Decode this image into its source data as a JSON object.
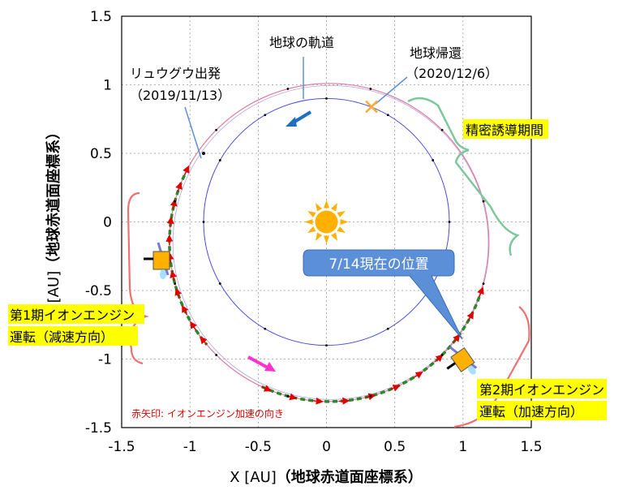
{
  "chart_data": {
    "type": "scatter",
    "xlabel_prefix": "X [AU]",
    "xlabel_suffix": "（地球赤道面座標系）",
    "ylabel_prefix": "Y [AU]",
    "ylabel_suffix": "（地球赤道面座標系）",
    "xlim": [
      -1.5,
      1.5
    ],
    "ylim": [
      -1.5,
      1.5
    ],
    "x_ticks": [
      "-1.5",
      "-1",
      "-0.5",
      "0",
      "0.5",
      "1",
      "1.5"
    ],
    "y_ticks": [
      "1.5",
      "1",
      "0.5",
      "0",
      "-0.5",
      "-1",
      "-1.5"
    ],
    "grid": true,
    "earth_orbit_radius": 0.9,
    "departure_point": [
      -0.9,
      0.5
    ],
    "return_point": [
      0.33,
      0.84
    ],
    "current_point": [
      0.98,
      -0.97
    ],
    "thrust_arcs_deg": [
      [
        155,
        220
      ],
      [
        -20,
        -115
      ]
    ]
  },
  "labels": {
    "earth_orbit": "地球の軌道",
    "departure_line1": "リュウグウ出発",
    "departure_line2": "（2019/11/13）",
    "return_line1": "地球帰還",
    "return_line2": "（2020/12/6）",
    "precision_guidance": "精密誘導期間",
    "current_position": "7/14現在の位置",
    "phase1_line1": "第1期イオンエンジン",
    "phase1_line2": "運転（減速方向）",
    "phase2_line1": "第2期イオンエンジン",
    "phase2_line2": "運転（加速方向）",
    "red_arrow_note": "赤矢印: イオンエンジン加速の向き"
  },
  "colors": {
    "earth_orbit": "#4a4ae8",
    "trajectory": "#e07a9a",
    "thrust": "#2a8a2a",
    "thrust_arrow": "#e00000",
    "highlight": "#ffff00",
    "bracket_red": "#f07070",
    "bracket_green": "#7cc89c",
    "sun": "#ffb000",
    "return_marker": "#ffaa33",
    "callout": "#5b8fd8",
    "blue_arrow": "#1f6fc0",
    "magenta_arrow": "#ff33cc"
  },
  "icons": {
    "sun": "sun-icon",
    "spacecraft": "spacecraft-icon",
    "return_marker": "cross-icon"
  }
}
